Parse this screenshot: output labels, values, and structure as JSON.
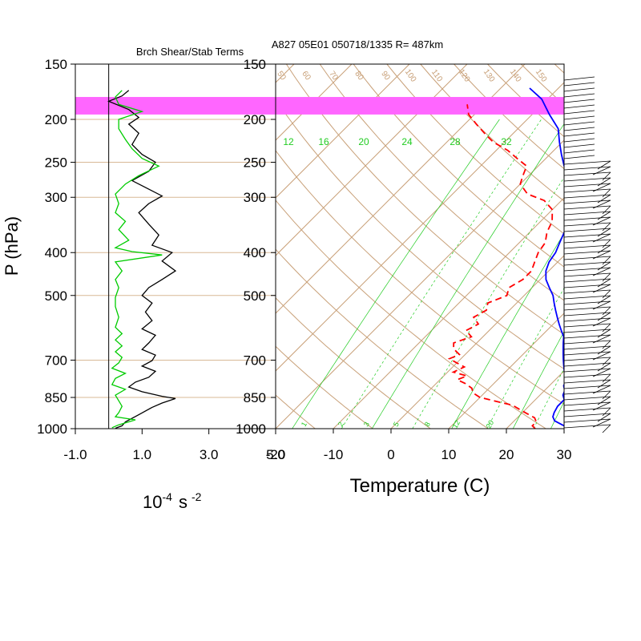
{
  "header": {
    "station_title": "A827 05E01 050718/1335 R= 487km",
    "left_panel_title": "Brch Shear/Stab Terms"
  },
  "axes": {
    "pressure_label": "P (hPa)",
    "pressure_ticks": [
      150,
      200,
      250,
      300,
      400,
      500,
      700,
      850,
      1000
    ],
    "left_x_unit_base": "10",
    "left_x_unit_exp": "-4",
    "left_x_unit_s": "s",
    "left_x_unit_s_exp": "-2",
    "left_x_ticks": [
      "-1.0",
      "1.0",
      "3.0",
      "5.0"
    ],
    "temperature_label": "Temperature (C)",
    "temperature_ticks": [
      "-20",
      "-10",
      "0",
      "10",
      "20",
      "30"
    ]
  },
  "colors": {
    "highlight": "#ff66ff",
    "shear": "#00cc00",
    "stab": "#000000",
    "temperature": "#0000ff",
    "dewpoint": "#ff0000",
    "dry_adiabat": "#c8a078",
    "isotherm": "#c8a078",
    "mixing_ratio": "#22cc22",
    "grid": "#d8b896"
  },
  "chart_data": [
    {
      "type": "line",
      "title": "Brch Shear/Stab Terms",
      "ylabel": "P (hPa)",
      "xlim": [
        -1.0,
        5.0
      ],
      "ylim": [
        1000,
        150
      ],
      "highlight_band_hpa": [
        178,
        195
      ],
      "series": [
        {
          "key": "stab",
          "color": "#000000",
          "points": [
            [
              0.2,
              998
            ],
            [
              0.4,
              985
            ],
            [
              0.5,
              965
            ],
            [
              0.9,
              930
            ],
            [
              1.3,
              895
            ],
            [
              1.6,
              875
            ],
            [
              2.0,
              855
            ],
            [
              1.6,
              845
            ],
            [
              1.0,
              825
            ],
            [
              0.6,
              805
            ],
            [
              0.8,
              785
            ],
            [
              1.2,
              765
            ],
            [
              1.4,
              742
            ],
            [
              1.0,
              722
            ],
            [
              1.3,
              702
            ],
            [
              1.4,
              682
            ],
            [
              1.0,
              662
            ],
            [
              1.2,
              640
            ],
            [
              1.4,
              615
            ],
            [
              1.0,
              595
            ],
            [
              1.3,
              570
            ],
            [
              1.1,
              545
            ],
            [
              1.3,
              520
            ],
            [
              1.0,
              500
            ],
            [
              1.2,
              480
            ],
            [
              1.6,
              460
            ],
            [
              2.0,
              440
            ],
            [
              1.6,
              418
            ],
            [
              1.9,
              400
            ],
            [
              1.3,
              385
            ],
            [
              1.5,
              365
            ],
            [
              1.2,
              345
            ],
            [
              0.9,
              325
            ],
            [
              1.2,
              310
            ],
            [
              1.6,
              298
            ],
            [
              1.1,
              285
            ],
            [
              0.7,
              275
            ],
            [
              1.2,
              262
            ],
            [
              1.4,
              250
            ],
            [
              1.0,
              240
            ],
            [
              0.7,
              228
            ],
            [
              0.9,
              215
            ],
            [
              0.6,
              205
            ],
            [
              0.9,
              198
            ],
            [
              0.6,
              190
            ],
            [
              0.0,
              182
            ],
            [
              0.4,
              177
            ],
            [
              0.6,
              172
            ]
          ]
        },
        {
          "key": "shear",
          "color": "#00cc00",
          "points": [
            [
              0.1,
              995
            ],
            [
              0.3,
              980
            ],
            [
              0.8,
              955
            ],
            [
              0.2,
              940
            ],
            [
              0.3,
              920
            ],
            [
              0.4,
              890
            ],
            [
              0.3,
              865
            ],
            [
              0.2,
              840
            ],
            [
              0.5,
              815
            ],
            [
              0.1,
              795
            ],
            [
              0.2,
              770
            ],
            [
              0.5,
              750
            ],
            [
              0.1,
              730
            ],
            [
              0.3,
              710
            ],
            [
              0.4,
              690
            ],
            [
              0.2,
              670
            ],
            [
              0.4,
              650
            ],
            [
              0.2,
              630
            ],
            [
              0.4,
              610
            ],
            [
              0.2,
              590
            ],
            [
              0.3,
              560
            ],
            [
              0.2,
              530
            ],
            [
              0.2,
              505
            ],
            [
              0.3,
              480
            ],
            [
              0.2,
              460
            ],
            [
              0.4,
              440
            ],
            [
              0.2,
              420
            ],
            [
              1.6,
              405
            ],
            [
              0.7,
              398
            ],
            [
              0.2,
              390
            ],
            [
              0.6,
              375
            ],
            [
              0.3,
              355
            ],
            [
              0.5,
              340
            ],
            [
              0.2,
              325
            ],
            [
              0.3,
              310
            ],
            [
              0.2,
              295
            ],
            [
              0.5,
              280
            ],
            [
              0.9,
              268
            ],
            [
              1.5,
              255
            ],
            [
              1.0,
              245
            ],
            [
              0.7,
              233
            ],
            [
              0.5,
              222
            ],
            [
              0.3,
              210
            ],
            [
              0.3,
              200
            ],
            [
              1.0,
              192
            ],
            [
              0.3,
              185
            ],
            [
              0.2,
              178
            ],
            [
              0.4,
              172
            ]
          ]
        }
      ]
    },
    {
      "type": "line",
      "title": "A827 05E01 050718/1335 R= 487km",
      "xlabel": "Temperature (C)",
      "ylabel": "P (hPa)",
      "xlim": [
        -20,
        30
      ],
      "ylim": [
        1000,
        150
      ],
      "highlight_band_hpa": [
        178,
        195
      ],
      "mixing_ratio_labels": [
        "12",
        "16",
        "20",
        "24",
        "28",
        "32"
      ],
      "mixing_ratio_lower_labels": [
        "1",
        "2",
        "3",
        "5",
        "8",
        "12",
        "20"
      ],
      "dry_adiabat_labels": [
        "50",
        "60",
        "70",
        "80",
        "90",
        "100",
        "110",
        "120",
        "130",
        "140",
        "150"
      ],
      "series": [
        {
          "key": "temperature",
          "color": "#0000ff",
          "points": [
            [
              31,
              1000
            ],
            [
              29,
              980
            ],
            [
              27,
              960
            ],
            [
              26,
              940
            ],
            [
              25.5,
              920
            ],
            [
              25,
              890
            ],
            [
              25,
              860
            ],
            [
              24,
              840
            ],
            [
              23.5,
              820
            ],
            [
              22.5,
              800
            ],
            [
              22,
              780
            ],
            [
              21,
              760
            ],
            [
              20,
              740
            ],
            [
              19,
              720
            ],
            [
              18,
              700
            ],
            [
              17,
              680
            ],
            [
              16,
              660
            ],
            [
              15,
              640
            ],
            [
              14,
              620
            ],
            [
              12.5,
              600
            ],
            [
              11,
              580
            ],
            [
              9.5,
              560
            ],
            [
              8,
              540
            ],
            [
              6.5,
              520
            ],
            [
              5,
              500
            ],
            [
              3,
              480
            ],
            [
              1,
              460
            ],
            [
              -0.5,
              440
            ],
            [
              -1.5,
              420
            ],
            [
              -2,
              400
            ],
            [
              -3,
              380
            ],
            [
              -4,
              360
            ],
            [
              -5.5,
              340
            ],
            [
              -7,
              320
            ],
            [
              -9,
              300
            ],
            [
              -11,
              285
            ],
            [
              -13,
              270
            ],
            [
              -15.5,
              255
            ],
            [
              -18,
              240
            ],
            [
              -20.5,
              225
            ],
            [
              -23,
              210
            ],
            [
              -27,
              195
            ],
            [
              -31,
              180
            ],
            [
              -35,
              170
            ]
          ]
        },
        {
          "key": "dewpoint",
          "color": "#ff0000",
          "points": [
            [
              25,
              1000
            ],
            [
              24,
              985
            ],
            [
              24,
              965
            ],
            [
              23,
              945
            ],
            [
              21,
              925
            ],
            [
              19,
              905
            ],
            [
              17,
              885
            ],
            [
              15,
              875
            ],
            [
              12,
              860
            ],
            [
              10,
              850
            ],
            [
              8,
              830
            ],
            [
              7,
              810
            ],
            [
              5,
              790
            ],
            [
              3,
              775
            ],
            [
              4,
              760
            ],
            [
              1,
              745
            ],
            [
              2,
              725
            ],
            [
              0,
              710
            ],
            [
              -2,
              695
            ],
            [
              -1,
              680
            ],
            [
              -3,
              660
            ],
            [
              -4,
              640
            ],
            [
              -2,
              620
            ],
            [
              -4,
              600
            ],
            [
              -3,
              580
            ],
            [
              -5,
              560
            ],
            [
              -4,
              540
            ],
            [
              -5,
              520
            ],
            [
              -3,
              500
            ],
            [
              -4,
              480
            ],
            [
              -3,
              460
            ],
            [
              -3,
              440
            ],
            [
              -4,
              420
            ],
            [
              -5,
              400
            ],
            [
              -5.5,
              380
            ],
            [
              -7,
              360
            ],
            [
              -8,
              340
            ],
            [
              -10,
              320
            ],
            [
              -13,
              305
            ],
            [
              -17,
              295
            ],
            [
              -20,
              280
            ],
            [
              -21,
              268
            ],
            [
              -22,
              255
            ],
            [
              -25,
              245
            ],
            [
              -28,
              235
            ],
            [
              -32,
              225
            ],
            [
              -35,
              215
            ],
            [
              -38,
              205
            ],
            [
              -41,
              195
            ],
            [
              -43,
              185
            ]
          ]
        }
      ]
    }
  ]
}
